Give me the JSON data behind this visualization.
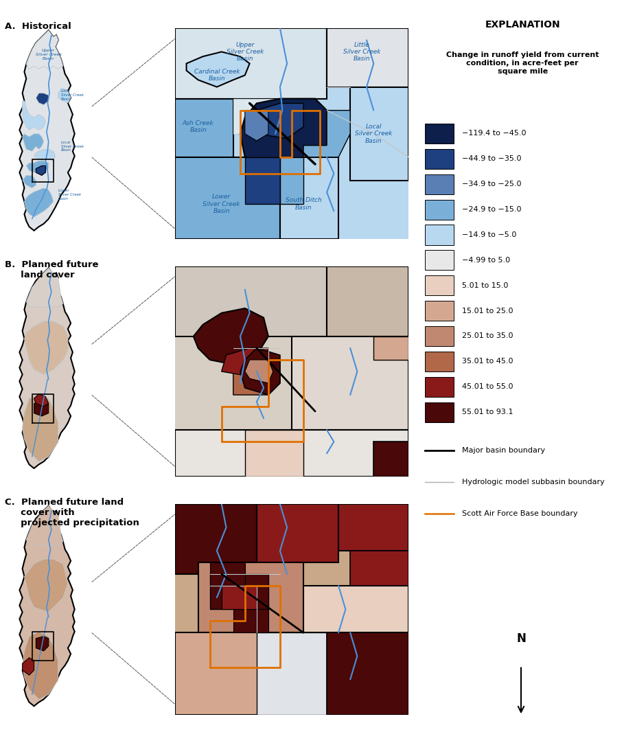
{
  "title_a": "A.  Historical",
  "title_b": "B.  Planned future\n     land cover",
  "title_c": "C.  Planned future land\n     cover with\n     projected precipitation",
  "explanation_title": "EXPLANATION",
  "legend_subtitle": "Change in runoff yield from current\ncondition, in acre-feet per\nsquare mile",
  "legend_entries": [
    {
      "label": "−119.4 to −45.0",
      "color": "#0d1f4a"
    },
    {
      "label": "−44.9 to −35.0",
      "color": "#1e4080"
    },
    {
      "label": "−34.9 to −25.0",
      "color": "#5a7fb5"
    },
    {
      "label": "−24.9 to −15.0",
      "color": "#7ab0d8"
    },
    {
      "label": "−14.9 to −5.0",
      "color": "#b8d8f0"
    },
    {
      "label": "−4.99 to 5.0",
      "color": "#e8e8e8"
    },
    {
      "label": "5.01 to 15.0",
      "color": "#e8cfc0"
    },
    {
      "label": "15.01 to 25.0",
      "color": "#d4a890"
    },
    {
      "label": "25.01 to 35.0",
      "color": "#c08870"
    },
    {
      "label": "35.01 to 45.0",
      "color": "#b06848"
    },
    {
      "label": "45.01 to 55.0",
      "color": "#8a1a1a"
    },
    {
      "label": "55.01 to 93.1",
      "color": "#4a0808"
    }
  ],
  "line_entries": [
    {
      "label": "Major basin boundary",
      "color": "#000000",
      "lw": 2.0
    },
    {
      "label": "Hydrologic model subbasin boundary",
      "color": "#b0b0b0",
      "lw": 1.0
    },
    {
      "label": "Scott Air Force Base boundary",
      "color": "#e07000",
      "lw": 1.8
    }
  ],
  "background_color": "#ffffff",
  "north_arrow_label": "N"
}
